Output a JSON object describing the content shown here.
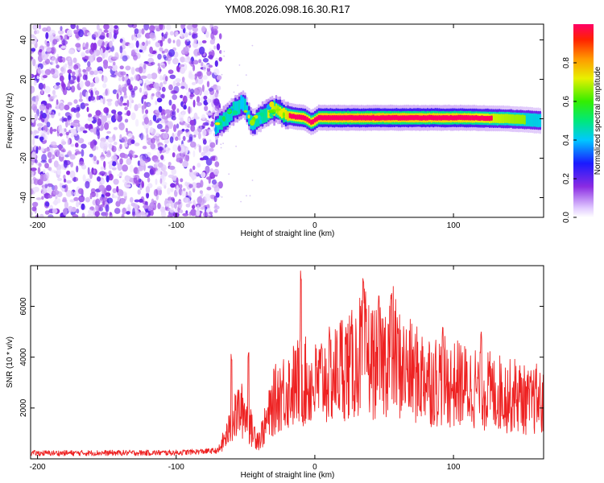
{
  "title": "YM08.2026.098.16.30.R17",
  "colors": {
    "line": "#ee2222",
    "axis": "#000000",
    "scatter_low": "#e6d6ff",
    "scatter_high": "#6a00d8"
  },
  "chart_data": [
    {
      "type": "heatmap",
      "name": "spectrogram",
      "xlabel": "Height of straight line (km)",
      "ylabel": "Frequency (Hz)",
      "xlim": [
        -205,
        165
      ],
      "ylim": [
        -50,
        48
      ],
      "xticks": [
        -200,
        -100,
        0,
        100
      ],
      "xtick_labels": [
        "-200",
        "-100",
        "0",
        "100"
      ],
      "yticks": [
        -40,
        -20,
        0,
        20,
        40
      ],
      "ytick_labels": [
        "-40",
        "-20",
        "0",
        "20",
        "40"
      ],
      "noise_region_x": [
        -205,
        -68
      ],
      "signal_track": [
        {
          "x": -73,
          "f": -4,
          "a": 0.35
        },
        {
          "x": -65,
          "f": 0,
          "a": 0.45
        },
        {
          "x": -58,
          "f": 5,
          "a": 0.4
        },
        {
          "x": -52,
          "f": 8,
          "a": 0.35
        },
        {
          "x": -46,
          "f": -3,
          "a": 0.4
        },
        {
          "x": -40,
          "f": 1,
          "a": 0.45
        },
        {
          "x": -34,
          "f": 3,
          "a": 0.55
        },
        {
          "x": -28,
          "f": 5,
          "a": 0.6
        },
        {
          "x": -22,
          "f": 2,
          "a": 0.7
        },
        {
          "x": -15,
          "f": 1,
          "a": 0.8
        },
        {
          "x": -8,
          "f": 0.5,
          "a": 0.9
        },
        {
          "x": -3,
          "f": -2,
          "a": 0.75
        },
        {
          "x": 2,
          "f": 0.5,
          "a": 0.95
        },
        {
          "x": 20,
          "f": 0.5,
          "a": 1.0
        },
        {
          "x": 50,
          "f": 0.5,
          "a": 0.98
        },
        {
          "x": 80,
          "f": 0.5,
          "a": 0.95
        },
        {
          "x": 110,
          "f": 0.5,
          "a": 0.9
        },
        {
          "x": 140,
          "f": 0.0,
          "a": 0.6
        },
        {
          "x": 163,
          "f": -1,
          "a": 0.45
        }
      ]
    },
    {
      "type": "line",
      "name": "snr",
      "xlabel": "Height of straight line (km)",
      "ylabel": "SNR (10 * v/v)",
      "xlim": [
        -205,
        165
      ],
      "ylim": [
        0,
        7600
      ],
      "xticks": [
        -200,
        -100,
        0,
        100
      ],
      "xtick_labels": [
        "-200",
        "-100",
        "0",
        "100"
      ],
      "yticks": [
        2000,
        4000,
        6000
      ],
      "ytick_labels": [
        "2000",
        "4000",
        "6000"
      ],
      "series": [
        {
          "name": "SNR",
          "envelope_x": [
            -205,
            -100,
            -70,
            -60,
            -55,
            -50,
            -45,
            -40,
            -35,
            -30,
            -25,
            -20,
            -15,
            -10,
            -5,
            0,
            5,
            10,
            15,
            20,
            25,
            30,
            35,
            40,
            45,
            50,
            55,
            60,
            65,
            70,
            75,
            80,
            85,
            90,
            95,
            100,
            105,
            110,
            115,
            120,
            125,
            130,
            135,
            140,
            145,
            150,
            155,
            160,
            165
          ],
          "envelope_y": [
            200,
            220,
            300,
            1500,
            2200,
            2100,
            1200,
            900,
            1600,
            2500,
            3000,
            3100,
            3300,
            3500,
            3400,
            3300,
            3600,
            3700,
            3800,
            4300,
            4100,
            4400,
            4900,
            4500,
            4200,
            4400,
            5200,
            4300,
            4000,
            3900,
            3700,
            3800,
            3500,
            3600,
            3400,
            3300,
            3400,
            3200,
            3300,
            3000,
            3100,
            2900,
            3000,
            2800,
            2900,
            2700,
            2500,
            2700,
            2400
          ],
          "peaks": [
            {
              "x": -60,
              "y": 4200
            },
            {
              "x": -48,
              "y": 4300
            },
            {
              "x": -10,
              "y": 7600
            },
            {
              "x": 35,
              "y": 7100
            },
            {
              "x": 46,
              "y": 6500
            },
            {
              "x": 55,
              "y": 6600
            },
            {
              "x": 92,
              "y": 5200
            },
            {
              "x": 120,
              "y": 5000
            }
          ]
        }
      ]
    },
    {
      "type": "colorbar",
      "name": "colorbar",
      "label": "Normalized spectral amplitude",
      "range": [
        0,
        1
      ],
      "ticks": [
        0.0,
        0.2,
        0.4,
        0.6,
        0.8
      ],
      "tick_labels": [
        "0.0",
        "0.2",
        "0.4",
        "0.6",
        "0.8"
      ]
    }
  ]
}
